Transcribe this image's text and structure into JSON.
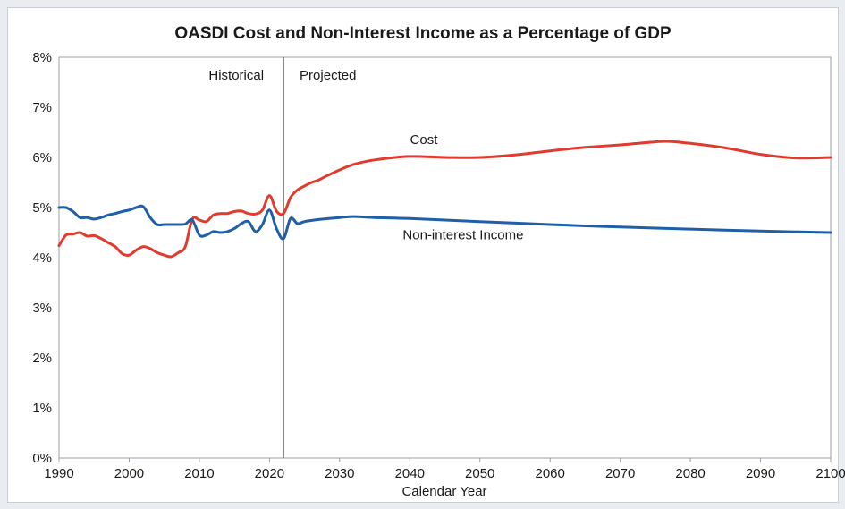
{
  "chart_data": {
    "type": "line",
    "title": "OASDI Cost and Non-Interest Income as a Percentage of GDP",
    "xlabel": "Calendar Year",
    "ylabel": "",
    "xlim": [
      1990,
      2100
    ],
    "ylim": [
      0,
      8
    ],
    "x_ticks": [
      "1990",
      "2000",
      "2010",
      "2020",
      "2030",
      "2040",
      "2050",
      "2060",
      "2070",
      "2080",
      "2090",
      "2100"
    ],
    "y_ticks": [
      "0%",
      "1%",
      "2%",
      "3%",
      "4%",
      "5%",
      "6%",
      "7%",
      "8%"
    ],
    "grid": false,
    "divider_year": 2022,
    "annotations": {
      "historical": "Historical",
      "projected": "Projected",
      "cost_label": "Cost",
      "income_label": "Non-interest Income"
    },
    "series": [
      {
        "key": "cost",
        "color": "#e03b2e",
        "x": [
          1990,
          1991,
          1992,
          1993,
          1994,
          1995,
          1996,
          1997,
          1998,
          1999,
          2000,
          2001,
          2002,
          2003,
          2004,
          2005,
          2006,
          2007,
          2008,
          2009,
          2010,
          2011,
          2012,
          2013,
          2014,
          2015,
          2016,
          2017,
          2018,
          2019,
          2020,
          2021,
          2022,
          2023,
          2024,
          2025,
          2026,
          2027,
          2028,
          2030,
          2032,
          2035,
          2040,
          2045,
          2050,
          2055,
          2060,
          2065,
          2070,
          2075,
          2077,
          2080,
          2085,
          2090,
          2095,
          2100
        ],
        "y": [
          4.24,
          4.45,
          4.47,
          4.5,
          4.43,
          4.44,
          4.38,
          4.3,
          4.22,
          4.08,
          4.05,
          4.15,
          4.22,
          4.18,
          4.1,
          4.05,
          4.02,
          4.1,
          4.22,
          4.77,
          4.75,
          4.72,
          4.85,
          4.88,
          4.88,
          4.92,
          4.93,
          4.88,
          4.87,
          4.95,
          5.24,
          4.93,
          4.88,
          5.2,
          5.35,
          5.43,
          5.5,
          5.55,
          5.62,
          5.75,
          5.86,
          5.95,
          6.02,
          6.0,
          6.0,
          6.05,
          6.13,
          6.2,
          6.25,
          6.31,
          6.32,
          6.28,
          6.19,
          6.06,
          5.99,
          6.0
        ]
      },
      {
        "key": "income",
        "color": "#1f5fa8",
        "x": [
          1990,
          1991,
          1992,
          1993,
          1994,
          1995,
          1996,
          1997,
          1998,
          1999,
          2000,
          2001,
          2002,
          2003,
          2004,
          2005,
          2006,
          2007,
          2008,
          2009,
          2010,
          2011,
          2012,
          2013,
          2014,
          2015,
          2016,
          2017,
          2018,
          2019,
          2020,
          2021,
          2022,
          2023,
          2024,
          2025,
          2027,
          2030,
          2032,
          2035,
          2040,
          2050,
          2060,
          2070,
          2080,
          2090,
          2100
        ],
        "y": [
          5.0,
          5.0,
          4.92,
          4.8,
          4.8,
          4.77,
          4.8,
          4.85,
          4.88,
          4.92,
          4.95,
          5.0,
          5.02,
          4.8,
          4.66,
          4.66,
          4.66,
          4.66,
          4.67,
          4.75,
          4.45,
          4.45,
          4.52,
          4.5,
          4.52,
          4.58,
          4.68,
          4.72,
          4.52,
          4.66,
          4.95,
          4.58,
          4.38,
          4.78,
          4.68,
          4.72,
          4.76,
          4.8,
          4.82,
          4.8,
          4.78,
          4.72,
          4.66,
          4.61,
          4.57,
          4.53,
          4.5
        ]
      }
    ]
  }
}
